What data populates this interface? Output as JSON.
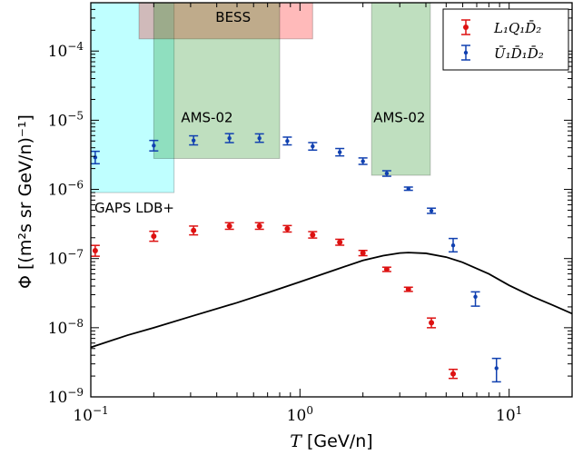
{
  "chart_data": {
    "type": "scatter",
    "xscale": "log",
    "yscale": "log",
    "xlim": [
      0.1,
      20
    ],
    "ylim": [
      1e-09,
      0.0005
    ],
    "grid": false,
    "legend_position": "top-right",
    "xlabel_math": "T",
    "xlabel_unit": "[GeV/n]",
    "ylabel": "Φ [(m²s sr GeV/n)⁻¹]",
    "x_ticks": [
      {
        "value": 0.1,
        "base": "10",
        "exp": "−1"
      },
      {
        "value": 1,
        "base": "10",
        "exp": "0"
      },
      {
        "value": 10,
        "base": "10",
        "exp": "1"
      }
    ],
    "y_ticks": [
      {
        "value": 1e-09,
        "base": "10",
        "exp": "−9"
      },
      {
        "value": 1e-08,
        "base": "10",
        "exp": "−8"
      },
      {
        "value": 1e-07,
        "base": "10",
        "exp": "−7"
      },
      {
        "value": 1e-06,
        "base": "10",
        "exp": "−6"
      },
      {
        "value": 1e-05,
        "base": "10",
        "exp": "−5"
      },
      {
        "value": 0.0001,
        "base": "10",
        "exp": "−4"
      }
    ],
    "bands": [
      {
        "label": "GAPS LDB+",
        "x": [
          0.1,
          0.25
        ],
        "y": [
          9e-07,
          0.0005
        ],
        "color": "#00ffff",
        "opacity": 0.25
      },
      {
        "label": "BESS",
        "x": [
          0.17,
          1.15
        ],
        "y": [
          0.00015,
          0.0005
        ],
        "color": "#ff0000",
        "opacity": 0.27
      },
      {
        "label": "AMS-02",
        "x": [
          0.2,
          0.8
        ],
        "y": [
          2.8e-06,
          0.0005
        ],
        "color": "#008000",
        "opacity": 0.25
      },
      {
        "label": "AMS-02",
        "x": [
          2.2,
          4.2
        ],
        "y": [
          1.6e-06,
          0.0005
        ],
        "color": "#008000",
        "opacity": 0.25
      }
    ],
    "series": [
      {
        "name": "L₁Q₁D̄₂",
        "color": "#dd1111",
        "points": [
          {
            "x": 0.105,
            "y": 1.3e-07,
            "lo": 1.08e-07,
            "hi": 1.55e-07
          },
          {
            "x": 0.2,
            "y": 2.1e-07,
            "lo": 1.78e-07,
            "hi": 2.48e-07
          },
          {
            "x": 0.31,
            "y": 2.55e-07,
            "lo": 2.2e-07,
            "hi": 2.95e-07
          },
          {
            "x": 0.46,
            "y": 2.95e-07,
            "lo": 2.65e-07,
            "hi": 3.3e-07
          },
          {
            "x": 0.64,
            "y": 2.95e-07,
            "lo": 2.65e-07,
            "hi": 3.3e-07
          },
          {
            "x": 0.87,
            "y": 2.7e-07,
            "lo": 2.42e-07,
            "hi": 3e-07
          },
          {
            "x": 1.15,
            "y": 2.2e-07,
            "lo": 1.98e-07,
            "hi": 2.45e-07
          },
          {
            "x": 1.55,
            "y": 1.72e-07,
            "lo": 1.56e-07,
            "hi": 1.9e-07
          },
          {
            "x": 2.0,
            "y": 1.2e-07,
            "lo": 1.1e-07,
            "hi": 1.31e-07
          },
          {
            "x": 2.6,
            "y": 7e-08,
            "lo": 6.5e-08,
            "hi": 7.5e-08
          },
          {
            "x": 3.3,
            "y": 3.6e-08,
            "lo": 3.35e-08,
            "hi": 3.85e-08
          },
          {
            "x": 4.25,
            "y": 1.18e-08,
            "lo": 1e-08,
            "hi": 1.38e-08
          },
          {
            "x": 5.4,
            "y": 2.15e-09,
            "lo": 1.85e-09,
            "hi": 2.5e-09
          }
        ]
      },
      {
        "name": "Ū₁D̄₁D̄₂",
        "color": "#1040b0",
        "points": [
          {
            "x": 0.105,
            "y": 2.9e-06,
            "lo": 2.35e-06,
            "hi": 3.55e-06
          },
          {
            "x": 0.2,
            "y": 4.3e-06,
            "lo": 3.6e-06,
            "hi": 5.1e-06
          },
          {
            "x": 0.31,
            "y": 5.1e-06,
            "lo": 4.4e-06,
            "hi": 5.95e-06
          },
          {
            "x": 0.46,
            "y": 5.5e-06,
            "lo": 4.75e-06,
            "hi": 6.4e-06
          },
          {
            "x": 0.64,
            "y": 5.5e-06,
            "lo": 4.8e-06,
            "hi": 6.35e-06
          },
          {
            "x": 0.87,
            "y": 5e-06,
            "lo": 4.4e-06,
            "hi": 5.7e-06
          },
          {
            "x": 1.15,
            "y": 4.2e-06,
            "lo": 3.7e-06,
            "hi": 4.75e-06
          },
          {
            "x": 1.55,
            "y": 3.45e-06,
            "lo": 3.05e-06,
            "hi": 3.9e-06
          },
          {
            "x": 2.0,
            "y": 2.55e-06,
            "lo": 2.3e-06,
            "hi": 2.85e-06
          },
          {
            "x": 2.6,
            "y": 1.7e-06,
            "lo": 1.55e-06,
            "hi": 1.86e-06
          },
          {
            "x": 3.3,
            "y": 1.02e-06,
            "lo": 9.7e-07,
            "hi": 1.08e-06
          },
          {
            "x": 4.25,
            "y": 4.9e-07,
            "lo": 4.5e-07,
            "hi": 5.35e-07
          },
          {
            "x": 5.4,
            "y": 1.55e-07,
            "lo": 1.25e-07,
            "hi": 1.95e-07
          },
          {
            "x": 6.9,
            "y": 2.8e-08,
            "lo": 2.05e-08,
            "hi": 3.3e-08
          },
          {
            "x": 8.7,
            "y": 2.6e-09,
            "lo": 1.65e-09,
            "hi": 3.6e-09
          }
        ]
      }
    ],
    "curve": {
      "color": "#000000",
      "x": [
        0.1,
        0.15,
        0.2,
        0.3,
        0.5,
        0.7,
        1.0,
        1.5,
        2.0,
        2.5,
        3.0,
        3.3,
        4.0,
        5.0,
        6.0,
        8.0,
        10.0,
        13.0,
        16.0,
        20.0
      ],
      "y": [
        5.2e-09,
        7.8e-09,
        1e-08,
        1.45e-08,
        2.3e-08,
        3.2e-08,
        4.6e-08,
        7e-08,
        9.4e-08,
        1.1e-07,
        1.2e-07,
        1.22e-07,
        1.19e-07,
        1.05e-07,
        8.8e-08,
        6e-08,
        4.1e-08,
        2.8e-08,
        2.15e-08,
        1.6e-08
      ]
    }
  }
}
